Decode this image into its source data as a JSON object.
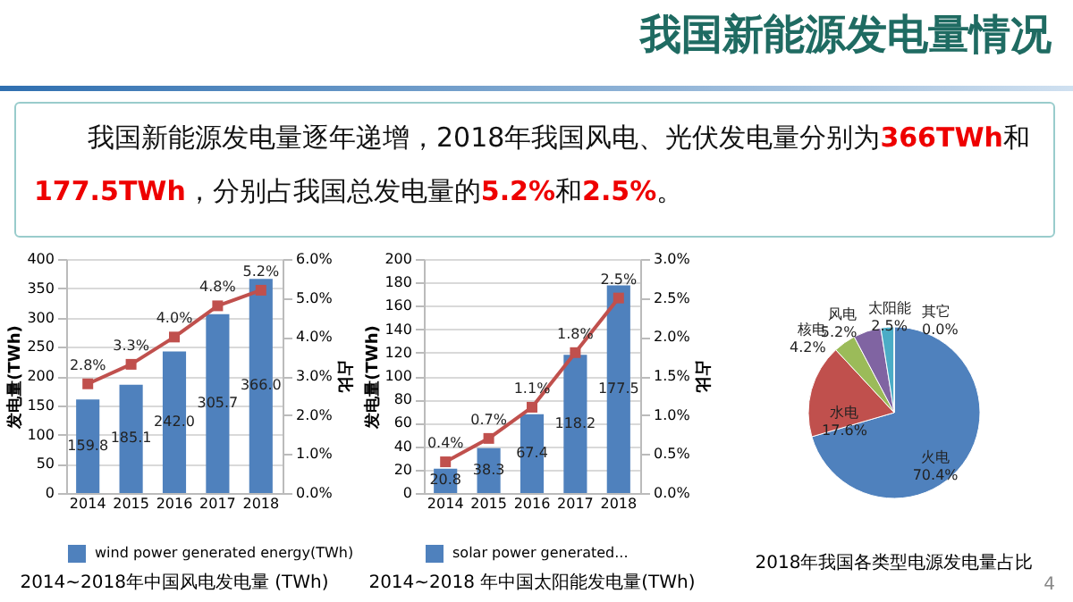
{
  "chart_data": [
    {
      "type": "other",
      "title": "我国新能源发电量情况",
      "annotations": [
        "我国新能源发电量逐年递增，2018年我国风电、光伏发电量分别为",
        "366TWh",
        "和",
        "177.5TWh",
        "，分别占我国总发电量的",
        "5.2%",
        "和",
        "2.5%",
        "。"
      ]
    },
    {
      "type": "bar",
      "title": "2014~2018年中国风电发电量 (TWh)",
      "categories": [
        "2014",
        "2015",
        "2016",
        "2017",
        "2018"
      ],
      "ylabel": "发电量(TWh)",
      "y2label": "占比",
      "ylim": [
        0,
        400
      ],
      "yticks": [
        0,
        50,
        100,
        150,
        200,
        250,
        300,
        350,
        400
      ],
      "y2lim": [
        0,
        6
      ],
      "y2ticks": [
        {
          "value": 0,
          "label": "0.0%"
        },
        {
          "value": 1,
          "label": "1.0%"
        },
        {
          "value": 2,
          "label": "2.0%"
        },
        {
          "value": 3,
          "label": "3.0%"
        },
        {
          "value": 4,
          "label": "4.0%"
        },
        {
          "value": 5,
          "label": "5.0%"
        },
        {
          "value": 6,
          "label": "6.0%"
        }
      ],
      "grid": "y",
      "legend": "bottom",
      "marker": "square",
      "series": [
        {
          "name": "wind power generated energy(TWh)",
          "color": "#4f81bd",
          "values": [
            159.8,
            185.1,
            242.0,
            305.7,
            366.0
          ],
          "value_labels": [
            "159.8",
            "185.1",
            "242.0",
            "305.7",
            "366.0"
          ]
        },
        {
          "type": "line",
          "axis": "y2",
          "color": "#c0504d",
          "values": [
            2.8,
            3.3,
            4.0,
            4.8,
            5.2
          ],
          "value_labels": [
            "2.8%",
            "3.3%",
            "4.0%",
            "4.8%",
            "5.2%"
          ]
        }
      ]
    },
    {
      "type": "bar",
      "title": "2014~2018 年中国太阳能发电量(TWh)",
      "categories": [
        "2014",
        "2015",
        "2016",
        "2017",
        "2018"
      ],
      "ylabel": "发电量(TWh)",
      "y2label": "占比",
      "ylim": [
        0,
        200
      ],
      "yticks": [
        0,
        20,
        40,
        60,
        80,
        100,
        120,
        140,
        160,
        180,
        200
      ],
      "y2lim": [
        0,
        3
      ],
      "y2ticks": [
        {
          "value": 0,
          "label": "0.0%"
        },
        {
          "value": 0.5,
          "label": "0.5%"
        },
        {
          "value": 1,
          "label": "1.0%"
        },
        {
          "value": 1.5,
          "label": "1.5%"
        },
        {
          "value": 2,
          "label": "2.0%"
        },
        {
          "value": 2.5,
          "label": "2.5%"
        },
        {
          "value": 3,
          "label": "3.0%"
        }
      ],
      "grid": "y",
      "legend": "bottom",
      "marker": "square",
      "series": [
        {
          "name": "solar power generated...",
          "color": "#4f81bd",
          "values": [
            20.8,
            38.3,
            67.4,
            118.2,
            177.5
          ],
          "value_labels": [
            "20.8",
            "38.3",
            "67.4",
            "118.2",
            "177.5"
          ]
        },
        {
          "type": "line",
          "axis": "y2",
          "color": "#c0504d",
          "values": [
            0.4,
            0.7,
            1.1,
            1.8,
            2.5
          ],
          "value_labels": [
            "0.4%",
            "0.7%",
            "1.1%",
            "1.8%",
            "2.5%"
          ]
        }
      ]
    },
    {
      "type": "pie",
      "title": "2018年我国各类型电源发电量占比",
      "categories": [
        "火电",
        "水电",
        "核电",
        "风电",
        "太阳能",
        "其它"
      ],
      "values": [
        70.4,
        17.6,
        4.2,
        5.2,
        2.5,
        0.0
      ],
      "colors": [
        "#4f81bd",
        "#c0504d",
        "#9bbb59",
        "#8064a2",
        "#4bacc6",
        "#f79646"
      ],
      "value_labels": [
        "70.4%",
        "17.6%",
        "4.2%",
        "5.2%",
        "2.5%",
        "0.0%"
      ],
      "annotations": [
        "4"
      ]
    }
  ]
}
